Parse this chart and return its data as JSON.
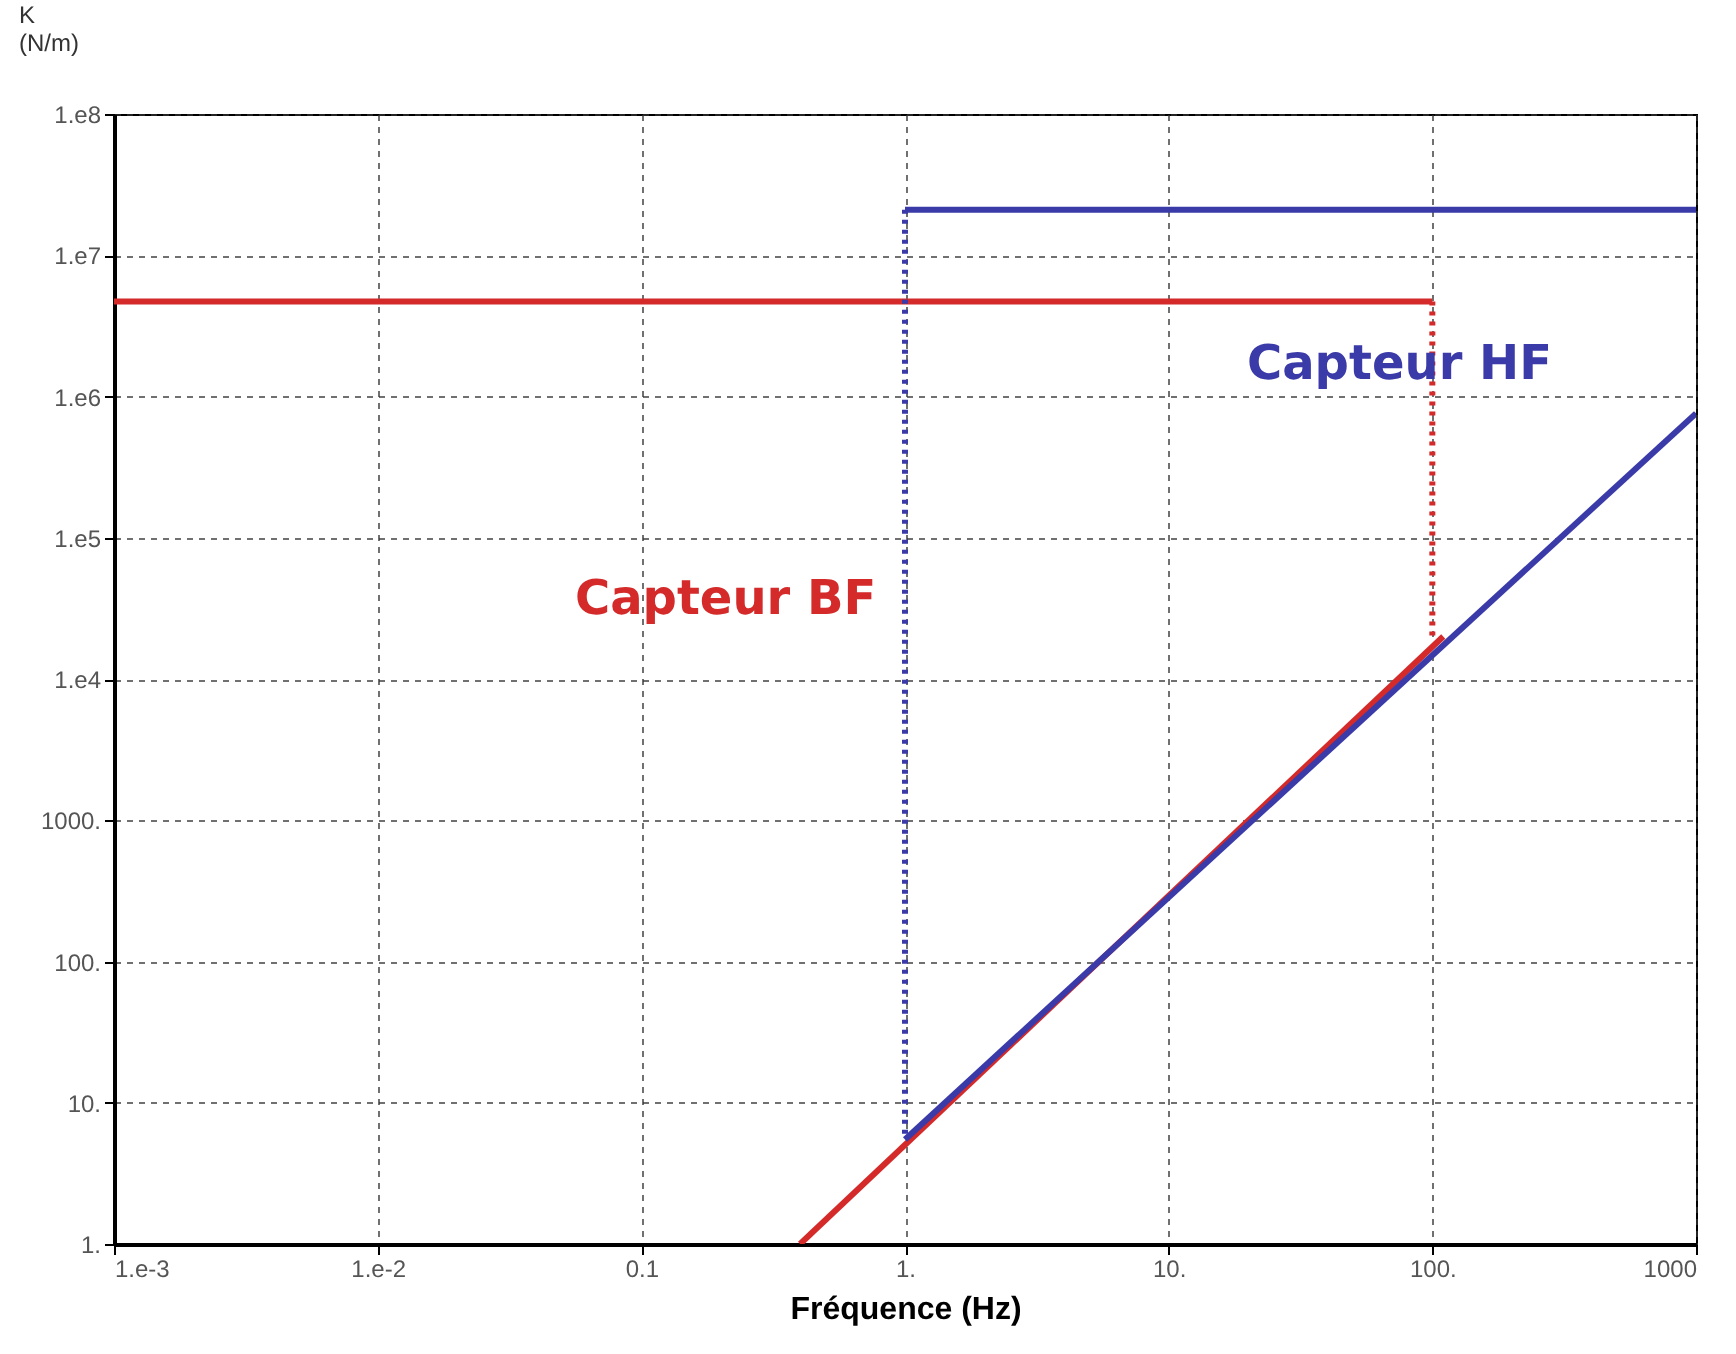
{
  "chart_data": {
    "type": "line",
    "xlabel": "Fréquence (Hz)",
    "ylabel": "K (N/m)",
    "log": "xy",
    "grid": true,
    "marker": "none",
    "xlim": [
      0.001,
      1000
    ],
    "ylim": [
      1,
      100000000
    ],
    "xticks": [
      {
        "value": 0.001,
        "label": "1.e-3"
      },
      {
        "value": 0.01,
        "label": "1.e-2"
      },
      0.1,
      {
        "value": 1,
        "label": "1."
      },
      {
        "value": 10,
        "label": "10."
      },
      {
        "value": 100,
        "label": "100."
      },
      1000
    ],
    "yticks": [
      {
        "value": 1,
        "label": "1."
      },
      {
        "value": 10,
        "label": "10."
      },
      {
        "value": 100,
        "label": "100."
      },
      {
        "value": 1000,
        "label": "1000."
      },
      {
        "value": 10000,
        "label": "1.e4"
      },
      {
        "value": 100000,
        "label": "1.e5"
      },
      {
        "value": 1000000,
        "label": "1.e6"
      },
      {
        "value": 10000000,
        "label": "1.e7"
      },
      {
        "value": 100000000,
        "label": "1.e8"
      }
    ],
    "series": [
      {
        "name": "Capteur BF",
        "color": "#d42a2a",
        "x": [
          0.001,
          100
        ],
        "values": [
          4700000,
          4700000
        ],
        "line_style": "solid"
      },
      {
        "color": "#d42a2a",
        "x": [
          100,
          100
        ],
        "values": [
          4700000,
          20000
        ],
        "line_style": "dotted"
      },
      {
        "color": "#d42a2a",
        "x": [
          0.4,
          110
        ],
        "values": [
          1,
          20000
        ],
        "line_style": "solid"
      },
      {
        "name": "Capteur HF",
        "color": "#3a3aa8",
        "x": [
          1,
          1000
        ],
        "values": [
          21000000,
          21000000
        ],
        "line_style": "solid"
      },
      {
        "color": "#3a3aa8",
        "x": [
          1,
          1
        ],
        "values": [
          21000000,
          5.5
        ],
        "line_style": "dotted"
      },
      {
        "color": "#3a3aa8",
        "x": [
          1,
          1000
        ],
        "values": [
          5.5,
          760000
        ],
        "line_style": "solid"
      }
    ]
  }
}
